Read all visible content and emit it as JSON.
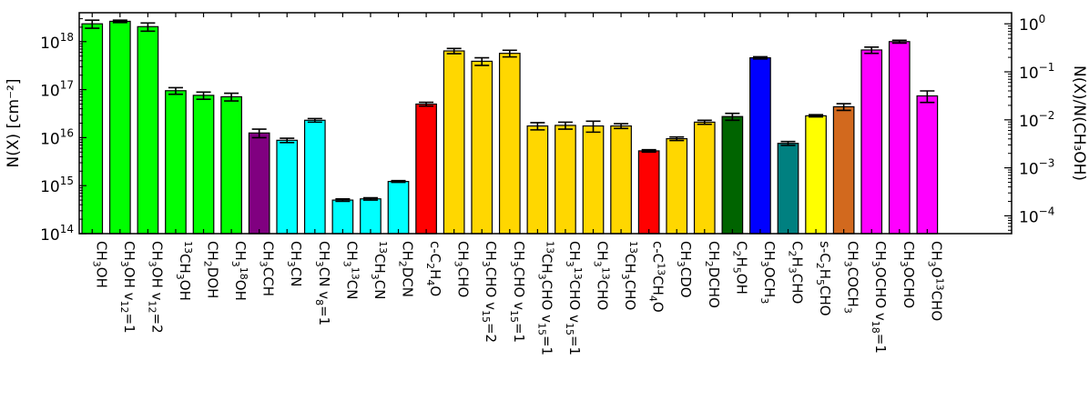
{
  "chart_data": {
    "type": "bar",
    "ylabel_left": "N(X) [cm⁻²]",
    "ylabel_right": "N(X)/N(CH₃OH)",
    "left_scale": "log",
    "left_ylim": [
      100000000000000.0,
      4e+18
    ],
    "left_ticks": [
      {
        "value": 100000000000000.0,
        "base": "10",
        "exp": "14"
      },
      {
        "value": 1000000000000000.0,
        "base": "10",
        "exp": "15"
      },
      {
        "value": 1e+16,
        "base": "10",
        "exp": "16"
      },
      {
        "value": 1e+17,
        "base": "10",
        "exp": "17"
      },
      {
        "value": 1e+18,
        "base": "10",
        "exp": "18"
      }
    ],
    "right_scale": "log",
    "right_reference": 2.35e+18,
    "right_ticks": [
      {
        "value": 0.0001,
        "base": "10",
        "exp": "−4"
      },
      {
        "value": 0.001,
        "base": "10",
        "exp": "−3"
      },
      {
        "value": 0.01,
        "base": "10",
        "exp": "−2"
      },
      {
        "value": 0.1,
        "base": "10",
        "exp": "−1"
      },
      {
        "value": 1,
        "base": "10",
        "exp": "0"
      }
    ],
    "grid": false,
    "legend": "none",
    "categories": [
      {
        "label": [
          [
            "CH"
          ],
          [
            "3",
            "sub"
          ],
          [
            "OH"
          ]
        ],
        "value": 2.35e+18,
        "err": 4.5e+17,
        "color": "#00ff00"
      },
      {
        "label": [
          [
            "CH"
          ],
          [
            "3",
            "sub"
          ],
          [
            "OH v"
          ],
          [
            "12",
            "sub"
          ],
          [
            "=1"
          ]
        ],
        "value": 2.65e+18,
        "err": 1.5e+17,
        "color": "#00ff00"
      },
      {
        "label": [
          [
            "CH"
          ],
          [
            "3",
            "sub"
          ],
          [
            "OH v"
          ],
          [
            "12",
            "sub"
          ],
          [
            "=2"
          ]
        ],
        "value": 2.05e+18,
        "err": 4e+17,
        "color": "#00ff00"
      },
      {
        "label": [
          [
            "13",
            "sup"
          ],
          [
            "CH"
          ],
          [
            "3",
            "sub"
          ],
          [
            "OH"
          ]
        ],
        "value": 9.5e+16,
        "err": 1.5e+16,
        "color": "#00ff00"
      },
      {
        "label": [
          [
            "CH"
          ],
          [
            "2",
            "sub"
          ],
          [
            "DOH"
          ]
        ],
        "value": 7.6e+16,
        "err": 1.3e+16,
        "color": "#00ff00"
      },
      {
        "label": [
          [
            "CH"
          ],
          [
            "3",
            "sub"
          ],
          [
            "18",
            "sup"
          ],
          [
            "OH"
          ]
        ],
        "value": 7.1e+16,
        "err": 1.3e+16,
        "color": "#00ff00"
      },
      {
        "label": [
          [
            "CH"
          ],
          [
            "3",
            "sub"
          ],
          [
            "CCH"
          ]
        ],
        "value": 1.25e+16,
        "err": 2500000000000000.0,
        "color": "#800080"
      },
      {
        "label": [
          [
            "CH"
          ],
          [
            "3",
            "sub"
          ],
          [
            "CN"
          ]
        ],
        "value": 8800000000000000.0,
        "err": 900000000000000.0,
        "color": "#00ffff"
      },
      {
        "label": [
          [
            "CH"
          ],
          [
            "3",
            "sub"
          ],
          [
            "CN v"
          ],
          [
            "8",
            "sub"
          ],
          [
            "=1"
          ]
        ],
        "value": 2.3e+16,
        "err": 2000000000000000.0,
        "color": "#00ffff"
      },
      {
        "label": [
          [
            "CH"
          ],
          [
            "3",
            "sub"
          ],
          [
            "13",
            "sup"
          ],
          [
            "CN"
          ]
        ],
        "value": 500000000000000.0,
        "err": 30000000000000.0,
        "color": "#00ffff"
      },
      {
        "label": [
          [
            "13",
            "sup"
          ],
          [
            "CH"
          ],
          [
            "3",
            "sub"
          ],
          [
            "CN"
          ]
        ],
        "value": 530000000000000.0,
        "err": 30000000000000.0,
        "color": "#00ffff"
      },
      {
        "label": [
          [
            "CH"
          ],
          [
            "2",
            "sub"
          ],
          [
            "DCN"
          ]
        ],
        "value": 1220000000000000.0,
        "err": 50000000000000.0,
        "color": "#00ffff"
      },
      {
        "label": [
          [
            "c-C"
          ],
          [
            "2",
            "sub"
          ],
          [
            "H"
          ],
          [
            "4",
            "sub"
          ],
          [
            "O"
          ]
        ],
        "value": 5e+16,
        "err": 4500000000000000.0,
        "color": "#ff0000"
      },
      {
        "label": [
          [
            "CH"
          ],
          [
            "3",
            "sub"
          ],
          [
            "CHO"
          ]
        ],
        "value": 6.4e+17,
        "err": 8e+16,
        "color": "#ffd700"
      },
      {
        "label": [
          [
            "CH"
          ],
          [
            "3",
            "sub"
          ],
          [
            "CHO v"
          ],
          [
            "15",
            "sub"
          ],
          [
            "=2"
          ]
        ],
        "value": 3.9e+17,
        "err": 7e+16,
        "color": "#ffd700"
      },
      {
        "label": [
          [
            "CH"
          ],
          [
            "3",
            "sub"
          ],
          [
            "CHO v"
          ],
          [
            "15",
            "sub"
          ],
          [
            "=1"
          ]
        ],
        "value": 5.7e+17,
        "err": 9e+16,
        "color": "#ffd700"
      },
      {
        "label": [
          [
            "13",
            "sup"
          ],
          [
            "CH"
          ],
          [
            "3",
            "sub"
          ],
          [
            "CHO v"
          ],
          [
            "15",
            "sub"
          ],
          [
            "=1"
          ]
        ],
        "value": 1.75e+16,
        "err": 3000000000000000.0,
        "color": "#ffd700"
      },
      {
        "label": [
          [
            "CH"
          ],
          [
            "3",
            "sub"
          ],
          [
            "13",
            "sup"
          ],
          [
            "CHO v"
          ],
          [
            "15",
            "sub"
          ],
          [
            "=1"
          ]
        ],
        "value": 1.8e+16,
        "err": 3000000000000000.0,
        "color": "#ffd700"
      },
      {
        "label": [
          [
            "CH"
          ],
          [
            "3",
            "sub"
          ],
          [
            "13",
            "sup"
          ],
          [
            "CHO"
          ]
        ],
        "value": 1.75e+16,
        "err": 4500000000000000.0,
        "color": "#ffd700"
      },
      {
        "label": [
          [
            "13",
            "sup"
          ],
          [
            "CH"
          ],
          [
            "3",
            "sub"
          ],
          [
            "CHO"
          ]
        ],
        "value": 1.75e+16,
        "err": 2000000000000000.0,
        "color": "#ffd700"
      },
      {
        "label": [
          [
            "c-C"
          ],
          [
            "13",
            "sup"
          ],
          [
            "CH"
          ],
          [
            "4",
            "sub"
          ],
          [
            "O"
          ]
        ],
        "value": 5300000000000000.0,
        "err": 300000000000000.0,
        "color": "#ff0000"
      },
      {
        "label": [
          [
            "CH"
          ],
          [
            "3",
            "sub"
          ],
          [
            "CDO"
          ]
        ],
        "value": 9500000000000000.0,
        "err": 800000000000000.0,
        "color": "#ffd700"
      },
      {
        "label": [
          [
            "CH"
          ],
          [
            "2",
            "sub"
          ],
          [
            "DCHO"
          ]
        ],
        "value": 2.1e+16,
        "err": 2000000000000000.0,
        "color": "#ffd700"
      },
      {
        "label": [
          [
            "C"
          ],
          [
            "2",
            "sub"
          ],
          [
            "H"
          ],
          [
            "5",
            "sub"
          ],
          [
            "OH"
          ]
        ],
        "value": 2.75e+16,
        "err": 4500000000000000.0,
        "color": "#006400"
      },
      {
        "label": [
          [
            "CH"
          ],
          [
            "3",
            "sub"
          ],
          [
            "OCH"
          ],
          [
            "3",
            "sub"
          ]
        ],
        "value": 4.6e+17,
        "err": 2.5e+16,
        "color": "#0000ff"
      },
      {
        "label": [
          [
            "C"
          ],
          [
            "2",
            "sub"
          ],
          [
            "H"
          ],
          [
            "3",
            "sub"
          ],
          [
            "CHO"
          ]
        ],
        "value": 7600000000000000.0,
        "err": 700000000000000.0,
        "color": "#008080"
      },
      {
        "label": [
          [
            "s-C"
          ],
          [
            "2",
            "sub"
          ],
          [
            "H"
          ],
          [
            "5",
            "sub"
          ],
          [
            "CHO"
          ]
        ],
        "value": 2.85e+16,
        "err": 1500000000000000.0,
        "color": "#ffff00"
      },
      {
        "label": [
          [
            "CH"
          ],
          [
            "3",
            "sub"
          ],
          [
            "COCH"
          ],
          [
            "3",
            "sub"
          ]
        ],
        "value": 4.4e+16,
        "err": 7000000000000000.0,
        "color": "#d2691e"
      },
      {
        "label": [
          [
            "CH"
          ],
          [
            "3",
            "sub"
          ],
          [
            "OCHO v"
          ],
          [
            "18",
            "sub"
          ],
          [
            "=1"
          ]
        ],
        "value": 6.7e+17,
        "err": 1e+17,
        "color": "#ff00ff"
      },
      {
        "label": [
          [
            "CH"
          ],
          [
            "3",
            "sub"
          ],
          [
            "OCHO"
          ]
        ],
        "value": 1e+18,
        "err": 7e+16,
        "color": "#ff00ff"
      },
      {
        "label": [
          [
            "CH"
          ],
          [
            "3",
            "sub"
          ],
          [
            "O"
          ],
          [
            "13",
            "sup"
          ],
          [
            "CHO"
          ]
        ],
        "value": 7.4e+16,
        "err": 2e+16,
        "color": "#ff00ff"
      }
    ]
  }
}
